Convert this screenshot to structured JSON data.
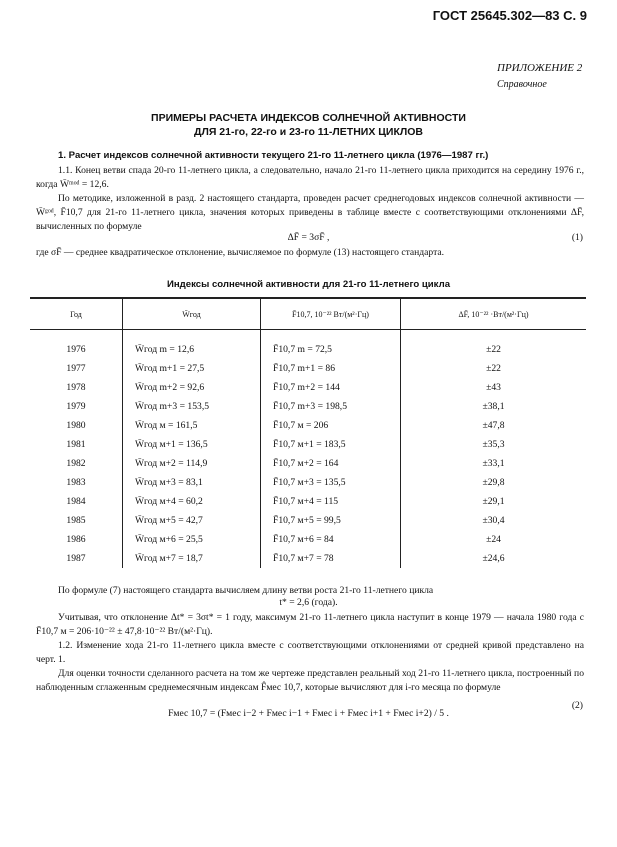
{
  "header": "ГОСТ 25645.302—83 С. 9",
  "appendix": {
    "label": "ПРИЛОЖЕНИЕ 2",
    "type": "Справочное"
  },
  "title": [
    "ПРИМЕРЫ РАСЧЕТА ИНДЕКСОВ СОЛНЕЧНОЙ АКТИВНОСТИ",
    "ДЛЯ 21-го, 22-го и 23-го 11-ЛЕТНИХ ЦИКЛОВ"
  ],
  "section1": "1. Расчет индексов солнечной активности текущего 21-го 11-летнего цикла (1976—1987 гг.)",
  "p1": "1.1. Конец ветви спада 20-го 11-летнего цикла, а следовательно, начало 21-го 11-летнего цикла приходится на середину 1976 г., когда W̄ᵐᵒᵈ = 12,6.",
  "p2": "По методике, изложенной в разд. 2 настоящего стандарта, проведен расчет среднегодовых индексов солнечной активности — W̄ᵍᵒᵈ, F̄10,7 для 21-го 11-летнего цикла, значения которых приведены в таблице вместе с соответствующими отклонениями ΔF̄, вычисленных по формуле",
  "formula1": "ΔF̄ = 3σF̄ ,",
  "eq1": "(1)",
  "p3": "где σF̄ — среднее квадратическое отклонение, вычисляемое по формуле (13) настоящего стандарта.",
  "table": {
    "caption": "Индексы солнечной активности для 21-го 11-летнего цикла",
    "headers": [
      "Год",
      "W̄год",
      "F̄10,7, 10⁻²² Вт/(м²·Гц)",
      "ΔF̄, 10⁻²² ·Вт/(м²·Гц)"
    ],
    "rows": [
      [
        "1976",
        "W̄год m = 12,6",
        "F̄10,7 m = 72,5",
        "±22"
      ],
      [
        "1977",
        "W̄год m+1 = 27,5",
        "F̄10,7 m+1 = 86",
        "±22"
      ],
      [
        "1978",
        "W̄год m+2 = 92,6",
        "F̄10,7 m+2 = 144",
        "±43"
      ],
      [
        "1979",
        "W̄год m+3 = 153,5",
        "F̄10,7 m+3 = 198,5",
        "±38,1"
      ],
      [
        "1980",
        "W̄год м = 161,5",
        "F̄10,7 м = 206",
        "±47,8"
      ],
      [
        "1981",
        "W̄год м+1 = 136,5",
        "F̄10,7 м+1 = 183,5",
        "±35,3"
      ],
      [
        "1982",
        "W̄год м+2 = 114,9",
        "F̄10,7 м+2 = 164",
        "±33,1"
      ],
      [
        "1983",
        "W̄год м+3 = 83,1",
        "F̄10,7 м+3 = 135,5",
        "±29,8"
      ],
      [
        "1984",
        "W̄год м+4 = 60,2",
        "F̄10,7 м+4 = 115",
        "±29,1"
      ],
      [
        "1985",
        "W̄год м+5 = 42,7",
        "F̄10,7 м+5 = 99,5",
        "±30,4"
      ],
      [
        "1986",
        "W̄год м+6 = 25,5",
        "F̄10,7 м+6 = 84",
        "±24"
      ],
      [
        "1987",
        "W̄год м+7 = 18,7",
        "F̄10,7 м+7 = 78",
        "±24,6"
      ]
    ]
  },
  "p4": "По формуле (7) настоящего стандарта вычисляем длину ветви роста 21-го 11-летнего цикла",
  "formula2": "t* = 2,6 (года).",
  "p5": "Учитывая, что отклонение Δt* = 3σt* = 1 году, максимум 21-го 11-летнего цикла наступит в конце 1979 — начала 1980 года с F̄10,7 м = 206·10⁻²² ± 47,8·10⁻²² Вт/(м²·Гц).",
  "p6": "1.2. Изменение хода 21-го 11-летнего цикла вместе с соответствующими отклонениями от средней кривой представлено на черт. 1.",
  "p7": "Для оценки точности сделанного расчета на том же чертеже представлен реальный ход 21-го 11-летнего цикла, построенный по наблюденным сглаженным среднемесячным индексам F̂мес 10,7, которые вычисляют для i-го месяца по формуле",
  "formula3": "Fмес 10,7 = (Fмес i−2 + Fмес i−1 + Fмес i + Fмес i+1 + Fмес i+2) / 5 .",
  "eq2": "(2)"
}
